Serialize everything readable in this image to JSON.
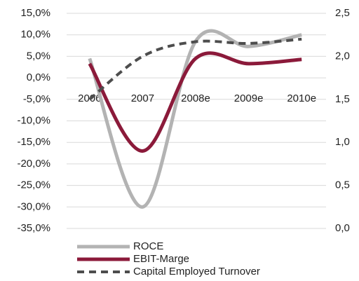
{
  "chart_data": {
    "type": "line",
    "categories": [
      "2006",
      "2007",
      "2008e",
      "2009e",
      "2010e"
    ],
    "series": [
      {
        "name": "ROCE",
        "color": "#b3b3b3",
        "values": [
          4.5,
          -30,
          8.5,
          7.3,
          10
        ]
      },
      {
        "name": "EBIT-Marge",
        "color": "#8b1a3a",
        "values": [
          3.3,
          -17,
          4.5,
          3.3,
          4.3
        ]
      },
      {
        "name": "Capital Employed Turnover",
        "color": "#4d4d4d",
        "axis": "y2",
        "dashed": true,
        "values": [
          1.5,
          2.0,
          2.17,
          2.15,
          2.2
        ]
      }
    ],
    "ylim": [
      -35,
      15
    ],
    "yticks": [
      {
        "value": 15,
        "label": "15,0%"
      },
      {
        "value": 10,
        "label": "10,0%"
      },
      {
        "value": 5,
        "label": "5,0%"
      },
      {
        "value": 0,
        "label": "0,0%"
      },
      {
        "value": -5,
        "label": "-5,0%"
      },
      {
        "value": -10,
        "label": "-10,0%"
      },
      {
        "value": -15,
        "label": "-15,0%"
      },
      {
        "value": -20,
        "label": "-20,0%"
      },
      {
        "value": -25,
        "label": "-25,0%"
      },
      {
        "value": -30,
        "label": "-30,0%"
      },
      {
        "value": -35,
        "label": "-35,0%"
      }
    ],
    "y2lim": [
      0,
      2.5
    ],
    "y2ticks": [
      {
        "value": 2.5,
        "label": "2,5"
      },
      {
        "value": 2,
        "label": "2,0"
      },
      {
        "value": 1.5,
        "label": "1,5"
      },
      {
        "value": 1,
        "label": "1,0"
      },
      {
        "value": 0.5,
        "label": "0,5"
      },
      {
        "value": 0,
        "label": "0,0"
      }
    ],
    "grid": true,
    "legend": "bottom"
  }
}
